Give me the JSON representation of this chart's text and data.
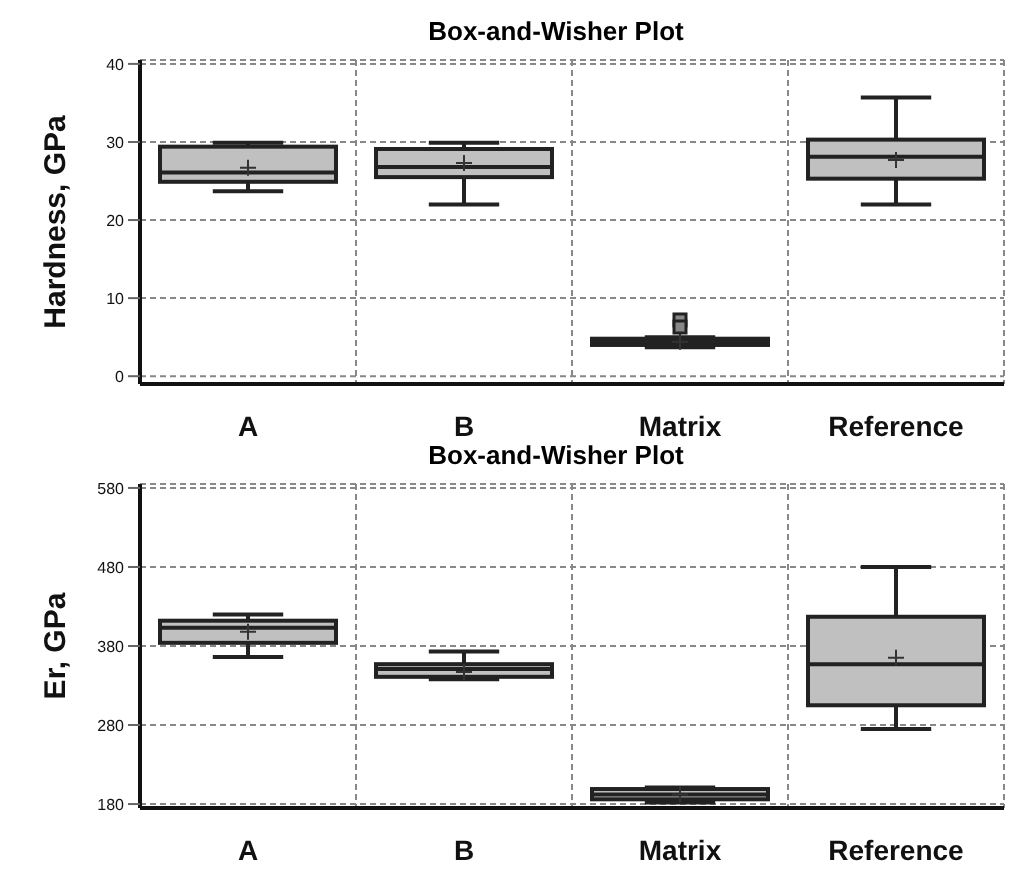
{
  "chart_data": [
    {
      "type": "box",
      "title": "Box-and-Wisher Plot",
      "ylabel": "Hardness, GPa",
      "categories": [
        "A",
        "B",
        "Matrix",
        "Reference"
      ],
      "ylim": [
        -1,
        40.5
      ],
      "yticks": [
        0,
        10,
        20,
        30,
        40
      ],
      "grid": true,
      "color": "#c0c0c0",
      "boxes": [
        {
          "low": 23.7,
          "q1": 24.9,
          "median": 26.1,
          "q3": 29.4,
          "high": 29.9,
          "mean": 26.7
        },
        {
          "low": 22.0,
          "q1": 25.5,
          "median": 26.8,
          "q3": 29.1,
          "high": 29.9,
          "mean": 27.3
        },
        {
          "low": 3.7,
          "q1": 4.0,
          "median": 4.4,
          "q3": 4.8,
          "high": 5.0,
          "mean": 4.4,
          "outliers": [
            7.2,
            6.3
          ]
        },
        {
          "low": 22.0,
          "q1": 25.3,
          "median": 28.1,
          "q3": 30.3,
          "high": 35.7,
          "mean": 27.7
        }
      ]
    },
    {
      "type": "box",
      "title": "Box-and-Wisher Plot",
      "ylabel": "Er, GPa",
      "categories": [
        "A",
        "B",
        "Matrix",
        "Reference"
      ],
      "ylim": [
        175,
        585
      ],
      "yticks": [
        180,
        280,
        380,
        480,
        580
      ],
      "grid": true,
      "color": "#c0c0c0",
      "boxes": [
        {
          "low": 366,
          "q1": 384,
          "median": 403,
          "q3": 412,
          "high": 420,
          "mean": 398
        },
        {
          "low": 338,
          "q1": 341,
          "median": 351,
          "q3": 357,
          "high": 373,
          "mean": 347
        },
        {
          "low": 182,
          "q1": 186,
          "median": 192,
          "q3": 199,
          "high": 201,
          "mean": 192
        },
        {
          "low": 275,
          "q1": 305,
          "median": 357,
          "q3": 417,
          "high": 480,
          "mean": 365
        }
      ]
    }
  ]
}
